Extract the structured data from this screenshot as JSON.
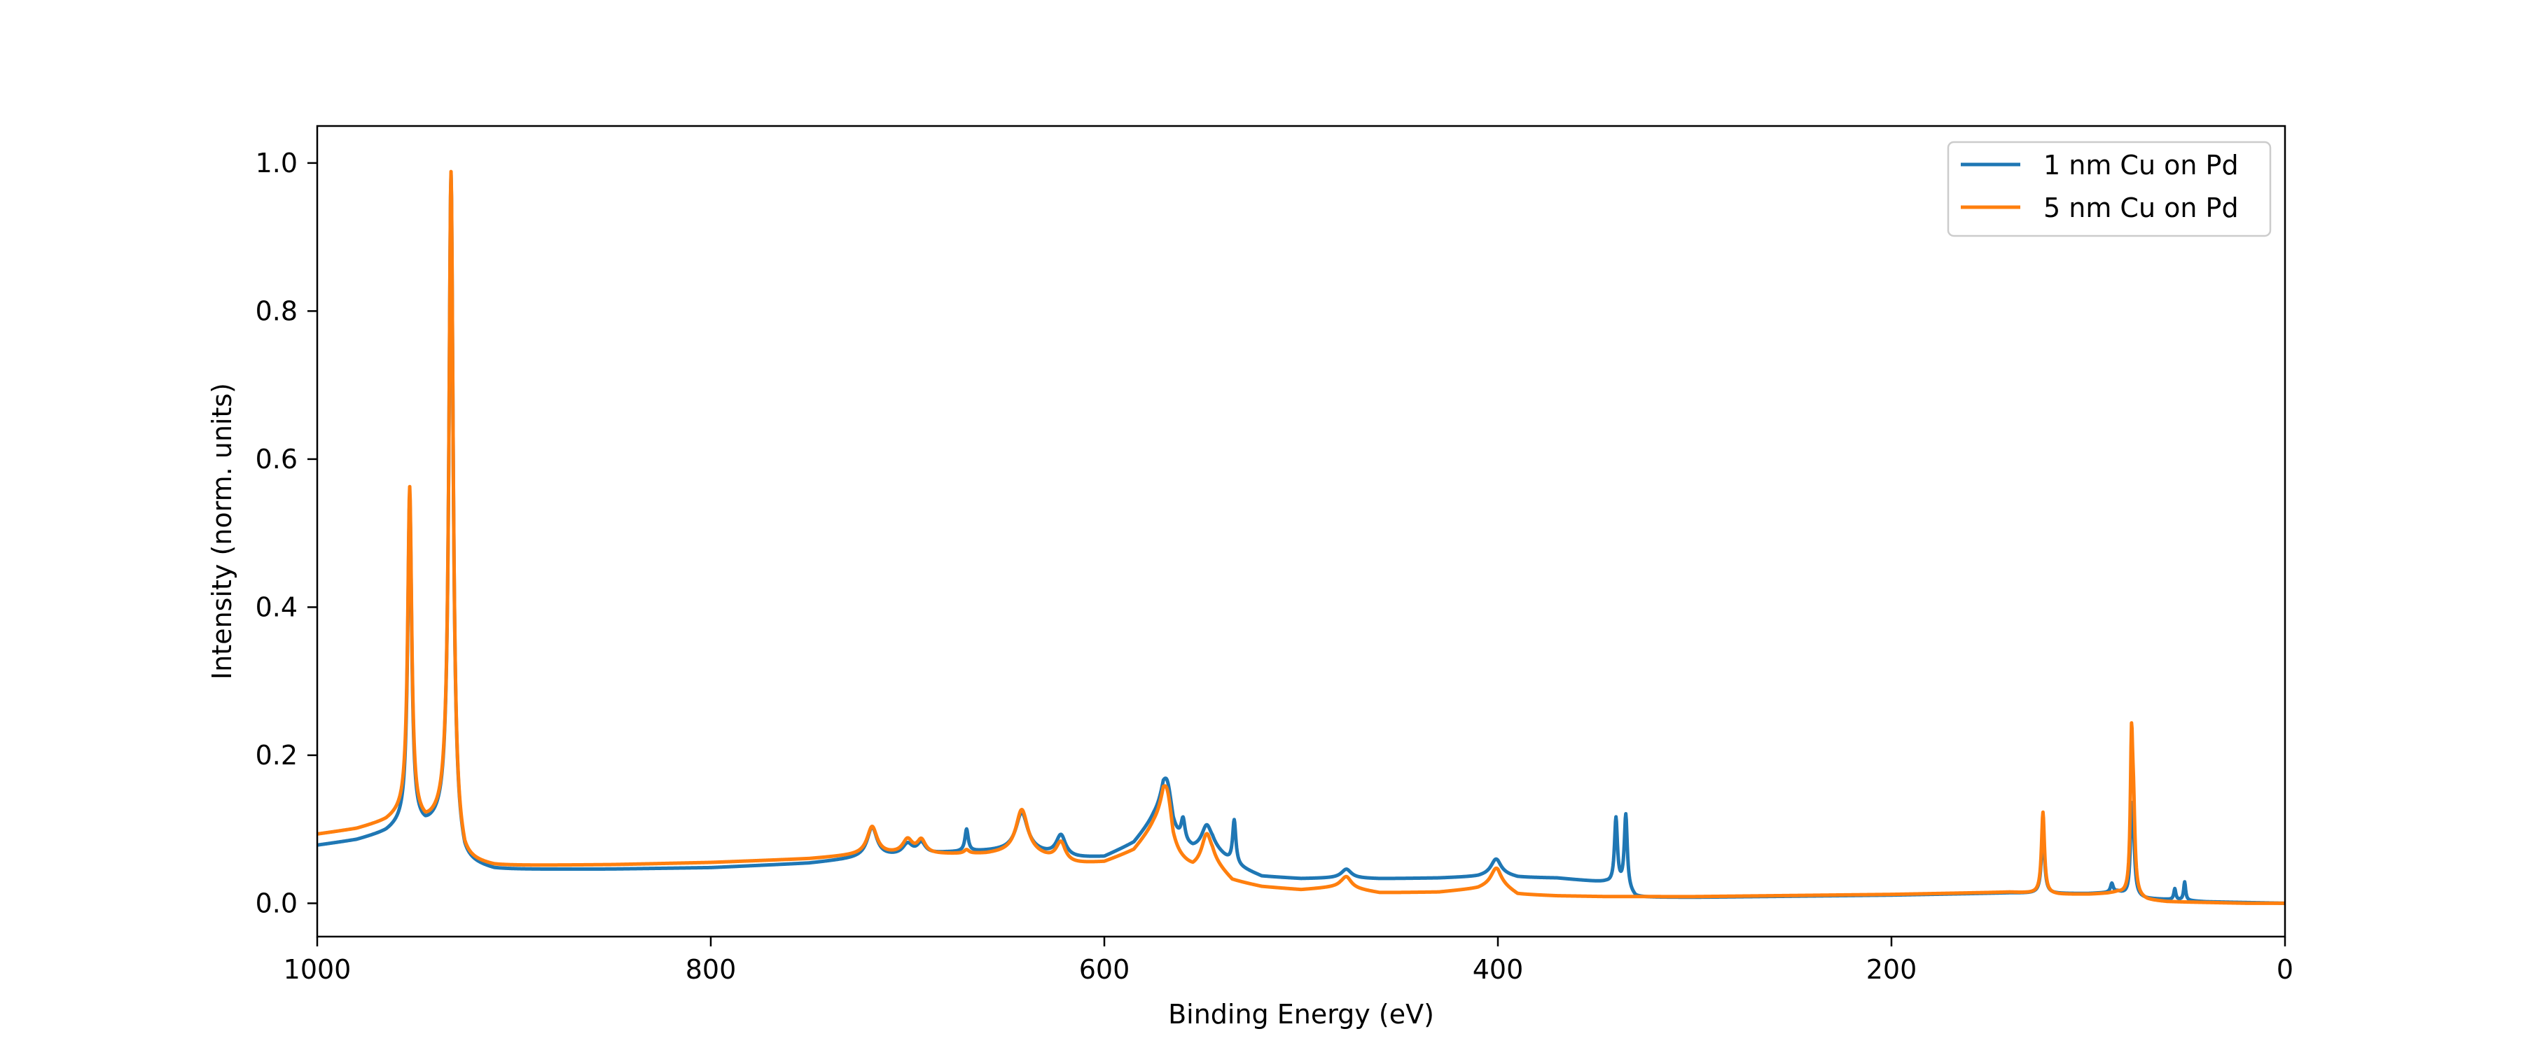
{
  "chart_data": {
    "type": "line",
    "title": "",
    "xlabel": "Binding Energy (eV)",
    "ylabel": "Intensity (norm. units)",
    "xlim": [
      1000,
      0
    ],
    "ylim": [
      -0.045,
      1.05
    ],
    "x_reversed": true,
    "grid": false,
    "legend_position": "top-right",
    "xticks": [
      1000,
      800,
      600,
      400,
      200,
      0
    ],
    "yticks": [
      0.0,
      0.2,
      0.4,
      0.6,
      0.8,
      1.0
    ],
    "xtick_labels": [
      "1000",
      "800",
      "600",
      "400",
      "200",
      "0"
    ],
    "ytick_labels": [
      "0.0",
      "0.2",
      "0.4",
      "0.6",
      "0.8",
      "1.0"
    ],
    "series": [
      {
        "name": "1 nm Cu on Pd",
        "color": "#1f77b4",
        "baseline": [
          [
            1000,
            0.078
          ],
          [
            980,
            0.085
          ],
          [
            965,
            0.095
          ],
          [
            955,
            0.108
          ],
          [
            945,
            0.1
          ],
          [
            935,
            0.11
          ],
          [
            925,
            0.052
          ],
          [
            910,
            0.045
          ],
          [
            850,
            0.046
          ],
          [
            800,
            0.048
          ],
          [
            750,
            0.054
          ],
          [
            720,
            0.062
          ],
          [
            700,
            0.064
          ],
          [
            680,
            0.068
          ],
          [
            660,
            0.07
          ],
          [
            640,
            0.072
          ],
          [
            620,
            0.06
          ],
          [
            600,
            0.062
          ],
          [
            585,
            0.08
          ],
          [
            575,
            0.11
          ],
          [
            570,
            0.12
          ],
          [
            565,
            0.08
          ],
          [
            555,
            0.07
          ],
          [
            545,
            0.075
          ],
          [
            535,
            0.052
          ],
          [
            520,
            0.036
          ],
          [
            500,
            0.033
          ],
          [
            480,
            0.034
          ],
          [
            460,
            0.033
          ],
          [
            430,
            0.034
          ],
          [
            410,
            0.036
          ],
          [
            400,
            0.04
          ],
          [
            390,
            0.035
          ],
          [
            370,
            0.034
          ],
          [
            345,
            0.028
          ],
          [
            336,
            0.02
          ],
          [
            330,
            0.008
          ],
          [
            300,
            0.008
          ],
          [
            200,
            0.011
          ],
          [
            140,
            0.014
          ],
          [
            115,
            0.013
          ],
          [
            100,
            0.013
          ],
          [
            90,
            0.014
          ],
          [
            85,
            0.015
          ],
          [
            80,
            0.01
          ],
          [
            70,
            0.006
          ],
          [
            60,
            0.005
          ],
          [
            40,
            0.002
          ],
          [
            20,
            0.001
          ],
          [
            0,
            0.0
          ]
        ],
        "peaks": [
          [
            953,
            0.44,
            1.2
          ],
          [
            932,
            0.89,
            1.3
          ],
          [
            718,
            0.04,
            3.0
          ],
          [
            700,
            0.015,
            3.0
          ],
          [
            693,
            0.015,
            2.5
          ],
          [
            670,
            0.03,
            1.0
          ],
          [
            642,
            0.05,
            3.5
          ],
          [
            622,
            0.03,
            3.0
          ],
          [
            568,
            0.06,
            3.5
          ],
          [
            560,
            0.03,
            1.2
          ],
          [
            548,
            0.03,
            3.0
          ],
          [
            534,
            0.06,
            1.0
          ],
          [
            477,
            0.012,
            3.0
          ],
          [
            401,
            0.02,
            3.0
          ],
          [
            340,
            0.09,
            0.9
          ],
          [
            335,
            0.1,
            0.9
          ],
          [
            123,
            0.09,
            0.9
          ],
          [
            88,
            0.012,
            0.8
          ],
          [
            78,
            0.1,
            0.7
          ],
          [
            77,
            0.06,
            0.9
          ],
          [
            56,
            0.015,
            0.6
          ],
          [
            51,
            0.025,
            0.6
          ]
        ]
      },
      {
        "name": "5 nm Cu on Pd",
        "color": "#ff7f0e",
        "baseline": [
          [
            1000,
            0.093
          ],
          [
            980,
            0.1
          ],
          [
            965,
            0.11
          ],
          [
            955,
            0.123
          ],
          [
            945,
            0.105
          ],
          [
            935,
            0.115
          ],
          [
            925,
            0.055
          ],
          [
            910,
            0.05
          ],
          [
            850,
            0.052
          ],
          [
            800,
            0.055
          ],
          [
            750,
            0.06
          ],
          [
            720,
            0.066
          ],
          [
            700,
            0.066
          ],
          [
            680,
            0.066
          ],
          [
            660,
            0.066
          ],
          [
            640,
            0.07
          ],
          [
            620,
            0.052
          ],
          [
            600,
            0.055
          ],
          [
            585,
            0.07
          ],
          [
            575,
            0.1
          ],
          [
            570,
            0.11
          ],
          [
            565,
            0.06
          ],
          [
            555,
            0.045
          ],
          [
            545,
            0.055
          ],
          [
            535,
            0.03
          ],
          [
            520,
            0.022
          ],
          [
            500,
            0.018
          ],
          [
            480,
            0.022
          ],
          [
            460,
            0.014
          ],
          [
            430,
            0.015
          ],
          [
            410,
            0.02
          ],
          [
            400,
            0.028
          ],
          [
            390,
            0.012
          ],
          [
            370,
            0.01
          ],
          [
            345,
            0.009
          ],
          [
            336,
            0.009
          ],
          [
            330,
            0.009
          ],
          [
            300,
            0.009
          ],
          [
            200,
            0.012
          ],
          [
            140,
            0.015
          ],
          [
            115,
            0.012
          ],
          [
            100,
            0.012
          ],
          [
            90,
            0.013
          ],
          [
            85,
            0.014
          ],
          [
            80,
            0.01
          ],
          [
            70,
            0.004
          ],
          [
            60,
            0.002
          ],
          [
            40,
            0.001
          ],
          [
            20,
            0.0
          ],
          [
            0,
            0.0
          ]
        ],
        "peaks": [
          [
            953,
            0.44,
            1.2
          ],
          [
            932,
            0.89,
            1.3
          ],
          [
            718,
            0.037,
            3.0
          ],
          [
            700,
            0.019,
            3.0
          ],
          [
            693,
            0.018,
            2.5
          ],
          [
            670,
            0.005,
            1.5
          ],
          [
            642,
            0.056,
            3.5
          ],
          [
            622,
            0.028,
            3.0
          ],
          [
            568,
            0.062,
            3.5
          ],
          [
            548,
            0.04,
            3.0
          ],
          [
            477,
            0.015,
            3.0
          ],
          [
            401,
            0.02,
            3.0
          ],
          [
            123,
            0.11,
            0.9
          ],
          [
            78,
            0.19,
            0.7
          ],
          [
            77,
            0.1,
            0.9
          ]
        ]
      }
    ]
  }
}
